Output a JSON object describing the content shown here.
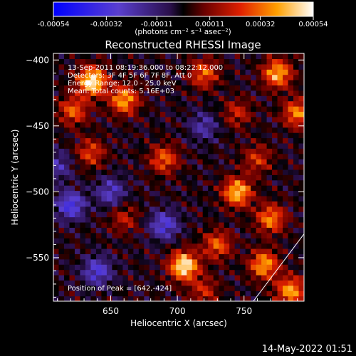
{
  "chart_data": {
    "type": "heatmap",
    "title": "Reconstructed RHESSI Image",
    "xlabel": "Heliocentric X (arcsec)",
    "ylabel": "Heliocentric Y (arcsec)",
    "xlim": [
      607,
      795
    ],
    "ylim": [
      -583,
      -395
    ],
    "x_ticks": [
      650,
      700,
      750
    ],
    "y_ticks": [
      -400,
      -450,
      -500,
      -550
    ],
    "annotations": [
      "13-Sep-2011 08:19:36.000 to 08:22:12.000",
      "Detectors: 3F 4F 5F 6F 7F 8F, Att 0",
      "Energy Range: 12.0 - 25.0 keV",
      "Mean: Total counts: 5.16E+03"
    ],
    "peak_label": "Position of Peak = [642,-424]",
    "peak": [
      642,
      -424
    ],
    "colorbar": {
      "range": [
        -0.00054,
        0.00054
      ],
      "ticks": [
        "-0.00054",
        "-0.00032",
        "-0.00011",
        "0.00011",
        "0.00032",
        "0.00054"
      ],
      "unit_label": "(photons cm⁻² s⁻¹ asec⁻²)"
    },
    "limb_line": [
      [
        757,
        -583
      ],
      [
        795,
        -532
      ]
    ],
    "sources": [
      {
        "x": 636,
        "y": -416,
        "intensity": 0.00054
      },
      {
        "x": 622,
        "y": -438,
        "intensity": 0.0003
      },
      {
        "x": 660,
        "y": -430,
        "intensity": 0.0004
      },
      {
        "x": 720,
        "y": -410,
        "intensity": 0.0003
      },
      {
        "x": 775,
        "y": -410,
        "intensity": 0.00042
      },
      {
        "x": 790,
        "y": -440,
        "intensity": 0.00035
      },
      {
        "x": 745,
        "y": -440,
        "intensity": 0.0002
      },
      {
        "x": 635,
        "y": -470,
        "intensity": 0.00025
      },
      {
        "x": 690,
        "y": -475,
        "intensity": 0.0003
      },
      {
        "x": 760,
        "y": -475,
        "intensity": 0.00022
      },
      {
        "x": 660,
        "y": -520,
        "intensity": 0.00018
      },
      {
        "x": 745,
        "y": -500,
        "intensity": 0.00045
      },
      {
        "x": 770,
        "y": -520,
        "intensity": 0.00035
      },
      {
        "x": 705,
        "y": -556,
        "intensity": 0.00054
      },
      {
        "x": 730,
        "y": -540,
        "intensity": 0.0003
      },
      {
        "x": 765,
        "y": -555,
        "intensity": 0.0004
      },
      {
        "x": 785,
        "y": -575,
        "intensity": 0.0004
      },
      {
        "x": 720,
        "y": -575,
        "intensity": 0.0002
      },
      {
        "x": 640,
        "y": -560,
        "intensity": -0.0003
      },
      {
        "x": 620,
        "y": -510,
        "intensity": -0.00035
      },
      {
        "x": 690,
        "y": -525,
        "intensity": -0.0003
      },
      {
        "x": 650,
        "y": -500,
        "intensity": -0.00025
      },
      {
        "x": 720,
        "y": -450,
        "intensity": -0.0002
      },
      {
        "x": 610,
        "y": -480,
        "intensity": -0.0002
      }
    ]
  },
  "footer": {
    "date": "14-May-2022 01:51"
  }
}
